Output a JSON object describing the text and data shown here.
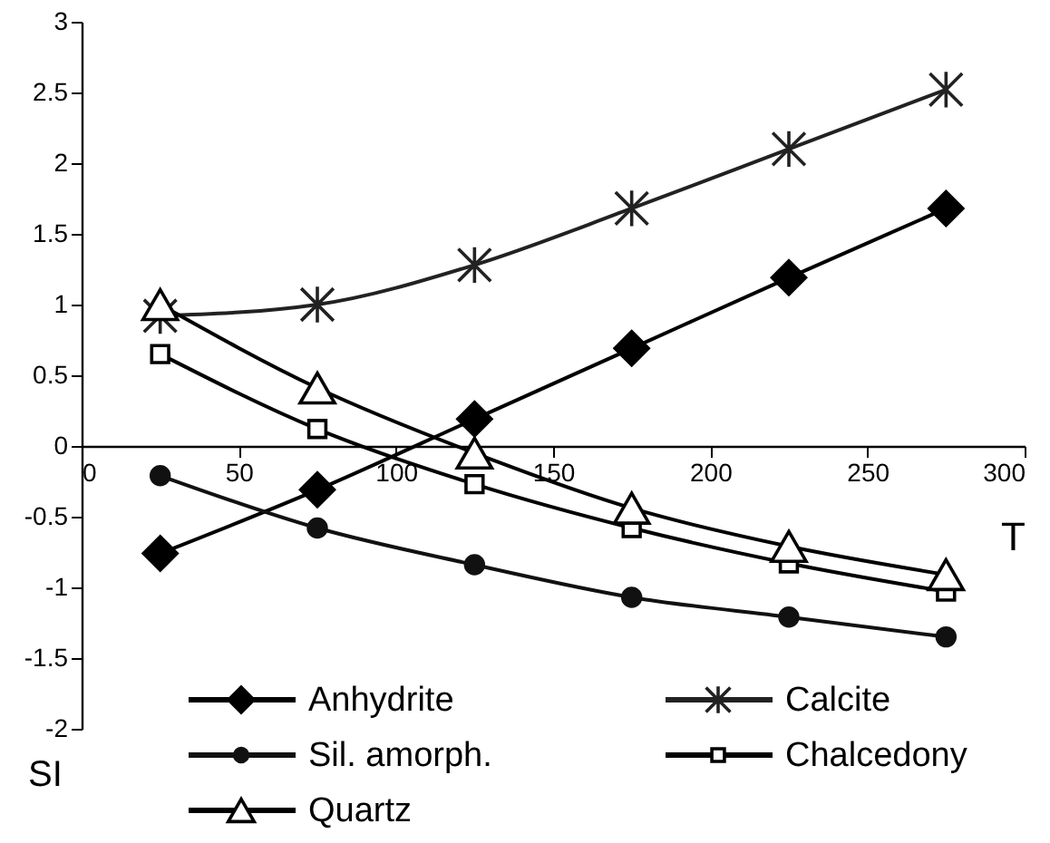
{
  "chart_data": {
    "type": "line",
    "xlabel": "T",
    "ylabel": "SI",
    "x": [
      25,
      75,
      125,
      175,
      225,
      275
    ],
    "series": [
      {
        "name": "Anhydrite",
        "color": "#000000",
        "marker": "diamond",
        "values": [
          -0.76,
          -0.31,
          0.19,
          0.69,
          1.19,
          1.68
        ]
      },
      {
        "name": "Calcite",
        "color": "#222222",
        "marker": "cross",
        "values": [
          0.92,
          1.0,
          1.28,
          1.68,
          2.1,
          2.52
        ]
      },
      {
        "name": "Sil. amorph.",
        "color": "#111111",
        "marker": "circle",
        "values": [
          -0.21,
          -0.58,
          -0.84,
          -1.07,
          -1.21,
          -1.35
        ]
      },
      {
        "name": "Chalcedony",
        "color": "#000000",
        "marker": "square",
        "values": [
          0.65,
          0.12,
          -0.27,
          -0.58,
          -0.83,
          -1.03
        ]
      },
      {
        "name": "Quartz",
        "color": "#000000",
        "marker": "triangle",
        "values": [
          1.0,
          0.41,
          -0.05,
          -0.44,
          -0.71,
          -0.91
        ]
      }
    ],
    "xlim": [
      0,
      300
    ],
    "xticks": [
      0,
      50,
      100,
      150,
      200,
      250,
      300
    ],
    "ylim": [
      -2,
      3
    ],
    "yticks": [
      -2,
      -1.5,
      -1,
      -0.5,
      0,
      0.5,
      1,
      1.5,
      2,
      2.5,
      3
    ],
    "grid": false,
    "legend": "bottom left",
    "line_style": "solid"
  }
}
